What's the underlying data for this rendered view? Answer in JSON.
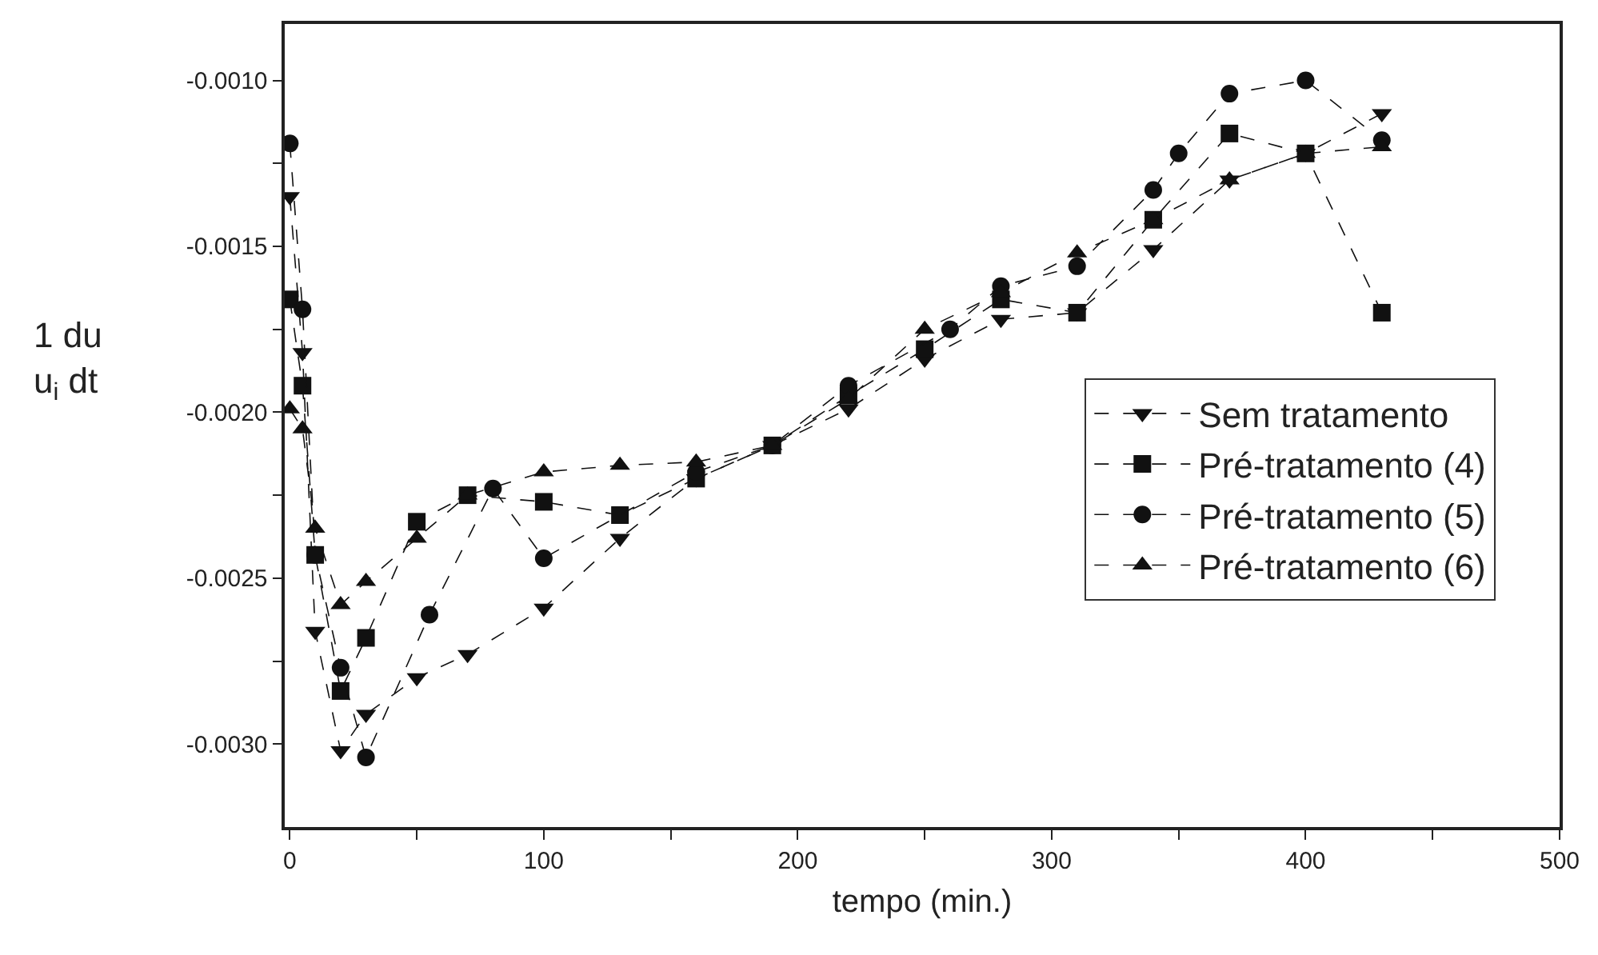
{
  "chart_data": {
    "type": "line",
    "xlabel": "tempo (min.)",
    "ylabel": "1 du\nu$_{i}$ dt",
    "xlim": [
      -2,
      500
    ],
    "xticks": [
      0,
      {
        "value": 50,
        "label": null
      },
      100,
      {
        "value": 150,
        "label": null
      },
      200,
      {
        "value": 250,
        "label": null
      },
      300,
      {
        "value": 350,
        "label": null
      },
      400,
      {
        "value": 450,
        "label": null
      },
      500
    ],
    "ylim": [
      -0.00325,
      -0.00083
    ],
    "yticks": [
      {
        "value": -0.003,
        "label": "-0.0030"
      },
      {
        "value": -0.00275,
        "label": null
      },
      {
        "value": -0.0025,
        "label": "-0.0025"
      },
      {
        "value": -0.00225,
        "label": null
      },
      {
        "value": -0.002,
        "label": "-0.0020"
      },
      {
        "value": -0.00175,
        "label": null
      },
      {
        "value": -0.0015,
        "label": "-0.0015"
      },
      {
        "value": -0.00125,
        "label": null
      },
      {
        "value": -0.001,
        "label": "-0.0010"
      }
    ],
    "legend": "right",
    "line_style": "dashed",
    "series": [
      {
        "name": "Sem tratamento",
        "color": "#111111",
        "marker": "triangle-down",
        "x": [
          0,
          5,
          10,
          20,
          30,
          50,
          70,
          100,
          130,
          160,
          190,
          220,
          250,
          280,
          310,
          340,
          370,
          400,
          430
        ],
        "values": [
          -0.00135,
          -0.00182,
          -0.00266,
          -0.00302,
          -0.00291,
          -0.0028,
          -0.00273,
          -0.00259,
          -0.00238,
          -0.0022,
          -0.0021,
          -0.00199,
          -0.00184,
          -0.00172,
          -0.0017,
          -0.00151,
          -0.0013,
          -0.00122,
          -0.0011
        ]
      },
      {
        "name": "Pré-tratamento (4)",
        "color": "#111111",
        "marker": "square",
        "x": [
          0,
          5,
          10,
          20,
          30,
          50,
          70,
          100,
          130,
          160,
          190,
          220,
          250,
          280,
          310,
          340,
          370,
          400,
          430
        ],
        "values": [
          -0.00166,
          -0.00192,
          -0.00243,
          -0.00284,
          -0.00268,
          -0.00233,
          -0.00225,
          -0.00227,
          -0.00231,
          -0.0022,
          -0.0021,
          -0.00195,
          -0.00181,
          -0.00166,
          -0.0017,
          -0.00142,
          -0.00116,
          -0.00122,
          -0.0017
        ]
      },
      {
        "name": "Pré-tratamento (5)",
        "color": "#111111",
        "marker": "circle",
        "x": [
          0,
          5,
          10,
          20,
          30,
          55,
          80,
          100,
          160,
          190,
          220,
          260,
          280,
          310,
          340,
          350,
          370,
          400,
          430
        ],
        "values": [
          -0.00119,
          -0.00169,
          -0.00243,
          -0.00277,
          -0.00304,
          -0.00261,
          -0.00223,
          -0.00244,
          -0.00218,
          -0.0021,
          -0.00192,
          -0.00175,
          -0.00162,
          -0.00156,
          -0.00133,
          -0.00122,
          -0.00104,
          -0.001,
          -0.00118
        ]
      },
      {
        "name": "Pré-tratamento (6)",
        "color": "#111111",
        "marker": "triangle",
        "x": [
          0,
          5,
          10,
          20,
          30,
          50,
          70,
          100,
          130,
          160,
          190,
          220,
          250,
          280,
          310,
          340,
          370,
          400,
          430
        ],
        "values": [
          -0.00199,
          -0.00205,
          -0.00235,
          -0.00258,
          -0.00251,
          -0.00238,
          -0.00225,
          -0.00218,
          -0.00216,
          -0.00215,
          -0.0021,
          -0.00196,
          -0.00175,
          -0.00164,
          -0.00152,
          -0.00142,
          -0.0013,
          -0.00122,
          -0.0012
        ]
      }
    ]
  }
}
